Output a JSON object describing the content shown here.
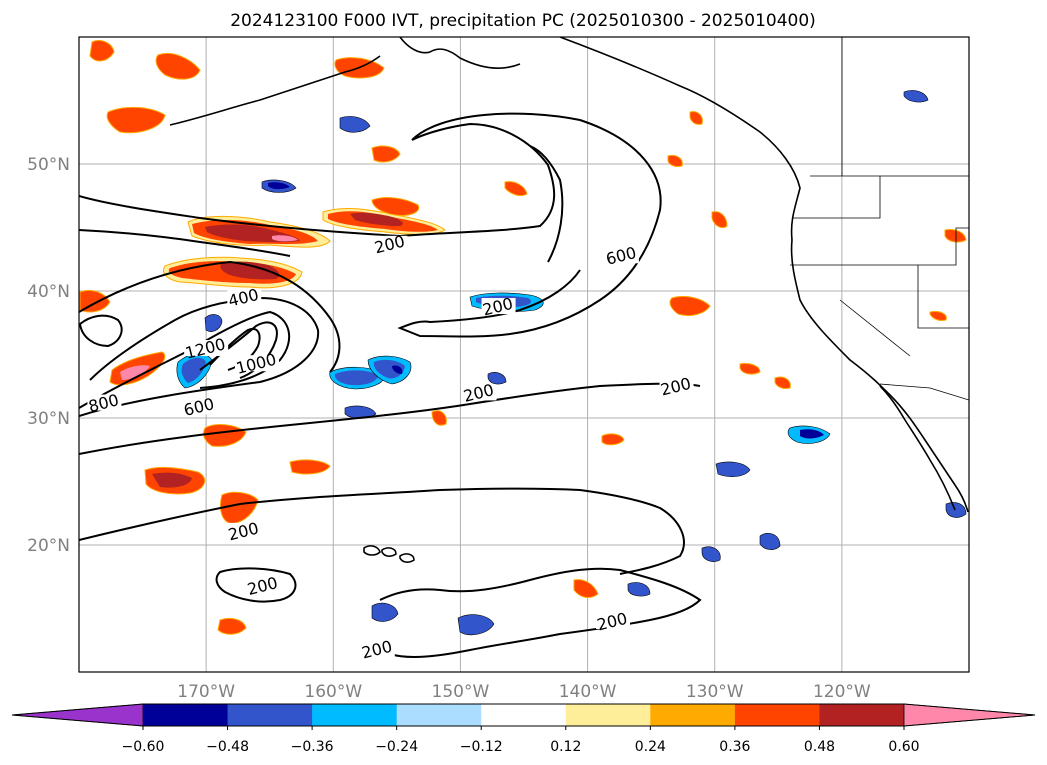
{
  "title": "2024123100 F000 IVT, precipitation PC (2025010300 - 2025010400)",
  "lat_labels": [
    {
      "text": "50°N",
      "lat": 50
    },
    {
      "text": "40°N",
      "lat": 40
    },
    {
      "text": "30°N",
      "lat": 30
    },
    {
      "text": "20°N",
      "lat": 20
    }
  ],
  "lon_labels": [
    {
      "text": "170°W",
      "lon": -170
    },
    {
      "text": "160°W",
      "lon": -160
    },
    {
      "text": "150°W",
      "lon": -150
    },
    {
      "text": "140°W",
      "lon": -140
    },
    {
      "text": "130°W",
      "lon": -130
    },
    {
      "text": "120°W",
      "lon": -120
    }
  ],
  "map_extent": {
    "lon": [
      -180,
      -110
    ],
    "lat": [
      10,
      60
    ]
  },
  "colorbar": {
    "tick_labels": [
      "−0.60",
      "−0.48",
      "−0.36",
      "−0.24",
      "−0.12",
      "0.12",
      "0.24",
      "0.36",
      "0.48",
      "0.60"
    ],
    "colors": [
      "#9933cc",
      "#000099",
      "#3355cc",
      "#00bbff",
      "#aaddff",
      "#ffffff",
      "#ffee99",
      "#ffaa00",
      "#ff4400",
      "#b22222",
      "#ff88aa"
    ]
  },
  "ivt_contour_labels": [
    {
      "text": "200",
      "lon": -155.5,
      "lat": 43.4
    },
    {
      "text": "200",
      "lon": -147,
      "lat": 38.5
    },
    {
      "text": "200",
      "lon": -148.5,
      "lat": 31.7
    },
    {
      "text": "200",
      "lon": -133,
      "lat": 32.2
    },
    {
      "text": "200",
      "lon": -167,
      "lat": 20.8
    },
    {
      "text": "200",
      "lon": -165.5,
      "lat": 16.5
    },
    {
      "text": "200",
      "lon": -138,
      "lat": 13.7
    },
    {
      "text": "200",
      "lon": -156.5,
      "lat": 11.5
    },
    {
      "text": "400",
      "lon": -167,
      "lat": 39.2
    },
    {
      "text": "600",
      "lon": -137.3,
      "lat": 42.5
    },
    {
      "text": "600",
      "lon": -170.5,
      "lat": 30.6
    },
    {
      "text": "800",
      "lon": -178,
      "lat": 30.9
    },
    {
      "text": "1000",
      "lon": -166,
      "lat": 34
    },
    {
      "text": "1200",
      "lon": -170,
      "lat": 35.2
    }
  ]
}
